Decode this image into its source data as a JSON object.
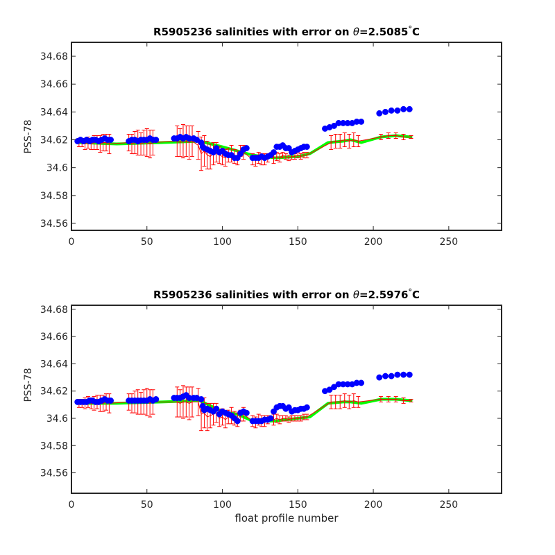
{
  "chart_data": [
    {
      "type": "scatter",
      "title_prefix": "R5905236 salinities with error on ",
      "title_theta": "θ",
      "title_value": "=2.5085",
      "title_degree": "°",
      "title_unit": "C",
      "xlabel": "",
      "ylabel": "PSS-78",
      "xlim": [
        0,
        285
      ],
      "ylim": [
        34.555,
        34.69
      ],
      "xticks": [
        0,
        50,
        100,
        150,
        200,
        250
      ],
      "yticks": [
        34.56,
        34.58,
        34.6,
        34.62,
        34.64,
        34.66,
        34.68
      ],
      "ytick_labels": [
        "34.56",
        "34.58",
        "34.6",
        "34.62",
        "34.64",
        "34.66",
        "34.68"
      ],
      "colors": {
        "float": "#0000ff",
        "fit": "#00ff00",
        "error": "#ff0000"
      },
      "fit_line": {
        "x": [
          5,
          30,
          60,
          85,
          100,
          110,
          120,
          135,
          150,
          158,
          170,
          180,
          185,
          192,
          205,
          215,
          225
        ],
        "y": [
          34.618,
          34.617,
          34.618,
          34.619,
          34.615,
          34.612,
          34.609,
          34.607,
          34.608,
          34.61,
          34.618,
          34.619,
          34.62,
          34.618,
          34.622,
          34.623,
          34.622
        ]
      },
      "mapped": {
        "x": [
          5,
          7,
          9,
          11,
          13,
          15,
          17,
          19,
          21,
          23,
          25,
          38,
          40,
          42,
          44,
          46,
          48,
          50,
          52,
          54,
          70,
          72,
          74,
          76,
          78,
          80,
          84,
          86,
          88,
          90,
          92,
          94,
          96,
          98,
          100,
          102,
          104,
          106,
          108,
          110,
          112,
          114,
          120,
          122,
          124,
          126,
          128,
          130,
          134,
          136,
          138,
          140,
          142,
          144,
          146,
          148,
          150,
          152,
          154,
          156,
          172,
          175,
          178,
          181,
          184,
          187,
          190,
          205,
          210,
          215,
          220,
          225
        ],
        "y": [
          34.618,
          34.618,
          34.617,
          34.618,
          34.617,
          34.618,
          34.618,
          34.617,
          34.618,
          34.618,
          34.617,
          34.618,
          34.617,
          34.618,
          34.618,
          34.617,
          34.618,
          34.618,
          34.617,
          34.618,
          34.619,
          34.618,
          34.619,
          34.619,
          34.618,
          34.619,
          34.616,
          34.61,
          34.612,
          34.609,
          34.608,
          34.61,
          34.611,
          34.609,
          34.608,
          34.607,
          34.609,
          34.61,
          34.608,
          34.607,
          34.612,
          34.611,
          34.606,
          34.605,
          34.607,
          34.606,
          34.606,
          34.607,
          34.607,
          34.608,
          34.607,
          34.609,
          34.608,
          34.607,
          34.608,
          34.608,
          34.609,
          34.608,
          34.609,
          34.609,
          34.618,
          34.619,
          34.619,
          34.62,
          34.619,
          34.62,
          34.619,
          34.622,
          34.623,
          34.623,
          34.622,
          34.622
        ],
        "err": [
          0.003,
          0.003,
          0.004,
          0.004,
          0.004,
          0.005,
          0.005,
          0.006,
          0.006,
          0.006,
          0.007,
          0.006,
          0.007,
          0.008,
          0.009,
          0.008,
          0.009,
          0.01,
          0.01,
          0.009,
          0.011,
          0.01,
          0.012,
          0.011,
          0.012,
          0.011,
          0.01,
          0.012,
          0.011,
          0.01,
          0.009,
          0.008,
          0.007,
          0.006,
          0.006,
          0.006,
          0.005,
          0.006,
          0.005,
          0.005,
          0.004,
          0.005,
          0.004,
          0.004,
          0.004,
          0.004,
          0.004,
          0.003,
          0.004,
          0.003,
          0.003,
          0.002,
          0.002,
          0.002,
          0.002,
          0.002,
          0.002,
          0.002,
          0.002,
          0.002,
          0.005,
          0.005,
          0.005,
          0.005,
          0.005,
          0.005,
          0.004,
          0.002,
          0.002,
          0.002,
          0.002,
          0.001
        ]
      },
      "float_salinity": {
        "x": [
          4,
          6,
          8,
          10,
          12,
          14,
          16,
          18,
          20,
          22,
          24,
          26,
          38,
          40,
          42,
          44,
          46,
          48,
          50,
          52,
          54,
          56,
          68,
          70,
          72,
          74,
          76,
          78,
          81,
          83,
          86,
          87,
          88,
          90,
          92,
          94,
          96,
          98,
          100,
          102,
          104,
          106,
          108,
          110,
          112,
          114,
          116,
          120,
          122,
          124,
          126,
          128,
          130,
          132,
          134,
          136,
          138,
          140,
          142,
          144,
          146,
          148,
          150,
          152,
          154,
          156,
          168,
          171,
          174,
          177,
          180,
          183,
          186,
          189,
          192,
          204,
          208,
          212,
          216,
          220,
          224
        ],
        "y": [
          34.619,
          34.62,
          34.619,
          34.62,
          34.619,
          34.62,
          34.62,
          34.619,
          34.62,
          34.621,
          34.62,
          34.62,
          34.619,
          34.62,
          34.62,
          34.619,
          34.62,
          34.62,
          34.62,
          34.621,
          34.62,
          34.62,
          34.621,
          34.621,
          34.622,
          34.621,
          34.622,
          34.621,
          34.621,
          34.62,
          34.618,
          34.615,
          34.614,
          34.613,
          34.612,
          34.611,
          34.614,
          34.611,
          34.612,
          34.61,
          34.609,
          34.609,
          34.607,
          34.607,
          34.61,
          34.613,
          34.614,
          34.607,
          34.607,
          34.607,
          34.608,
          34.607,
          34.608,
          34.609,
          34.611,
          34.615,
          34.615,
          34.616,
          34.614,
          34.614,
          34.611,
          34.612,
          34.613,
          34.614,
          34.615,
          34.615,
          34.628,
          34.629,
          34.63,
          34.632,
          34.632,
          34.632,
          34.632,
          34.633,
          34.633,
          34.639,
          34.64,
          34.641,
          34.641,
          34.642,
          34.642
        ]
      }
    },
    {
      "type": "scatter",
      "title_prefix": "R5905236 salinities with error on ",
      "title_theta": "θ",
      "title_value": "=2.5976",
      "title_degree": "°",
      "title_unit": "C",
      "xlabel": "float profile number",
      "ylabel": "PSS-78",
      "xlim": [
        0,
        285
      ],
      "ylim": [
        34.545,
        34.683
      ],
      "xticks": [
        0,
        50,
        100,
        150,
        200,
        250
      ],
      "yticks": [
        34.56,
        34.58,
        34.6,
        34.62,
        34.64,
        34.66,
        34.68
      ],
      "ytick_labels": [
        "34.56",
        "34.58",
        "34.6",
        "34.62",
        "34.64",
        "34.66",
        "34.68"
      ],
      "colors": {
        "float": "#0000ff",
        "fit": "#00ff00",
        "error": "#ff0000"
      },
      "fit_line": {
        "x": [
          5,
          30,
          60,
          85,
          100,
          110,
          120,
          135,
          150,
          158,
          170,
          180,
          185,
          192,
          205,
          215,
          225
        ],
        "y": [
          34.611,
          34.611,
          34.612,
          34.613,
          34.605,
          34.603,
          34.598,
          34.598,
          34.6,
          34.601,
          34.611,
          34.612,
          34.612,
          34.611,
          34.614,
          34.614,
          34.613
        ]
      },
      "mapped": {
        "x": [
          5,
          7,
          9,
          11,
          13,
          15,
          17,
          19,
          21,
          23,
          25,
          38,
          40,
          42,
          44,
          46,
          48,
          50,
          52,
          54,
          70,
          72,
          74,
          76,
          78,
          80,
          84,
          86,
          88,
          90,
          92,
          94,
          96,
          98,
          100,
          102,
          104,
          106,
          108,
          110,
          112,
          114,
          120,
          122,
          124,
          126,
          128,
          130,
          134,
          136,
          138,
          140,
          142,
          144,
          146,
          148,
          150,
          152,
          154,
          156,
          172,
          175,
          178,
          181,
          184,
          187,
          190,
          205,
          210,
          215,
          220,
          225
        ],
        "y": [
          34.611,
          34.611,
          34.611,
          34.612,
          34.611,
          34.611,
          34.612,
          34.611,
          34.611,
          34.612,
          34.611,
          34.612,
          34.611,
          34.612,
          34.612,
          34.611,
          34.612,
          34.612,
          34.611,
          34.612,
          34.612,
          34.611,
          34.612,
          34.612,
          34.611,
          34.612,
          34.612,
          34.603,
          34.604,
          34.601,
          34.602,
          34.603,
          34.604,
          34.6,
          34.601,
          34.599,
          34.601,
          34.602,
          34.6,
          34.599,
          34.602,
          34.603,
          34.598,
          34.597,
          34.599,
          34.598,
          34.598,
          34.599,
          34.599,
          34.6,
          34.599,
          34.6,
          34.6,
          34.599,
          34.6,
          34.6,
          34.6,
          34.6,
          34.601,
          34.601,
          34.612,
          34.612,
          34.612,
          34.613,
          34.612,
          34.613,
          34.612,
          34.614,
          34.614,
          34.614,
          34.613,
          34.613
        ],
        "err": [
          0.003,
          0.003,
          0.004,
          0.004,
          0.004,
          0.005,
          0.005,
          0.006,
          0.006,
          0.006,
          0.007,
          0.006,
          0.007,
          0.008,
          0.009,
          0.008,
          0.009,
          0.01,
          0.01,
          0.009,
          0.011,
          0.01,
          0.012,
          0.011,
          0.012,
          0.011,
          0.01,
          0.012,
          0.011,
          0.01,
          0.009,
          0.008,
          0.007,
          0.006,
          0.006,
          0.006,
          0.005,
          0.006,
          0.005,
          0.005,
          0.004,
          0.005,
          0.004,
          0.004,
          0.004,
          0.004,
          0.004,
          0.003,
          0.004,
          0.003,
          0.003,
          0.002,
          0.002,
          0.002,
          0.002,
          0.002,
          0.002,
          0.002,
          0.002,
          0.002,
          0.005,
          0.005,
          0.005,
          0.005,
          0.005,
          0.005,
          0.004,
          0.002,
          0.002,
          0.002,
          0.002,
          0.001
        ]
      },
      "float_salinity": {
        "x": [
          4,
          6,
          8,
          10,
          12,
          14,
          16,
          18,
          20,
          22,
          24,
          26,
          38,
          40,
          42,
          44,
          46,
          48,
          50,
          52,
          54,
          56,
          68,
          70,
          72,
          74,
          76,
          78,
          81,
          83,
          86,
          87,
          88,
          90,
          92,
          94,
          96,
          98,
          100,
          102,
          104,
          106,
          108,
          110,
          112,
          114,
          116,
          120,
          122,
          124,
          126,
          128,
          130,
          132,
          134,
          136,
          138,
          140,
          142,
          144,
          146,
          148,
          150,
          152,
          154,
          156,
          168,
          171,
          174,
          177,
          180,
          183,
          186,
          189,
          192,
          204,
          208,
          212,
          216,
          220,
          224
        ],
        "y": [
          34.612,
          34.612,
          34.612,
          34.612,
          34.613,
          34.613,
          34.612,
          34.612,
          34.613,
          34.614,
          34.613,
          34.613,
          34.613,
          34.613,
          34.613,
          34.613,
          34.613,
          34.613,
          34.613,
          34.614,
          34.613,
          34.614,
          34.615,
          34.615,
          34.615,
          34.616,
          34.617,
          34.615,
          34.615,
          34.615,
          34.614,
          34.609,
          34.606,
          34.607,
          34.606,
          34.605,
          34.607,
          34.603,
          34.605,
          34.604,
          34.603,
          34.602,
          34.6,
          34.598,
          34.604,
          34.605,
          34.604,
          34.598,
          34.598,
          34.598,
          34.598,
          34.599,
          34.599,
          34.6,
          34.605,
          34.608,
          34.609,
          34.609,
          34.607,
          34.608,
          34.605,
          34.606,
          34.606,
          34.607,
          34.607,
          34.608,
          34.62,
          34.621,
          34.623,
          34.625,
          34.625,
          34.625,
          34.625,
          34.626,
          34.626,
          34.63,
          34.631,
          34.631,
          34.632,
          34.632,
          34.632
        ]
      }
    }
  ]
}
